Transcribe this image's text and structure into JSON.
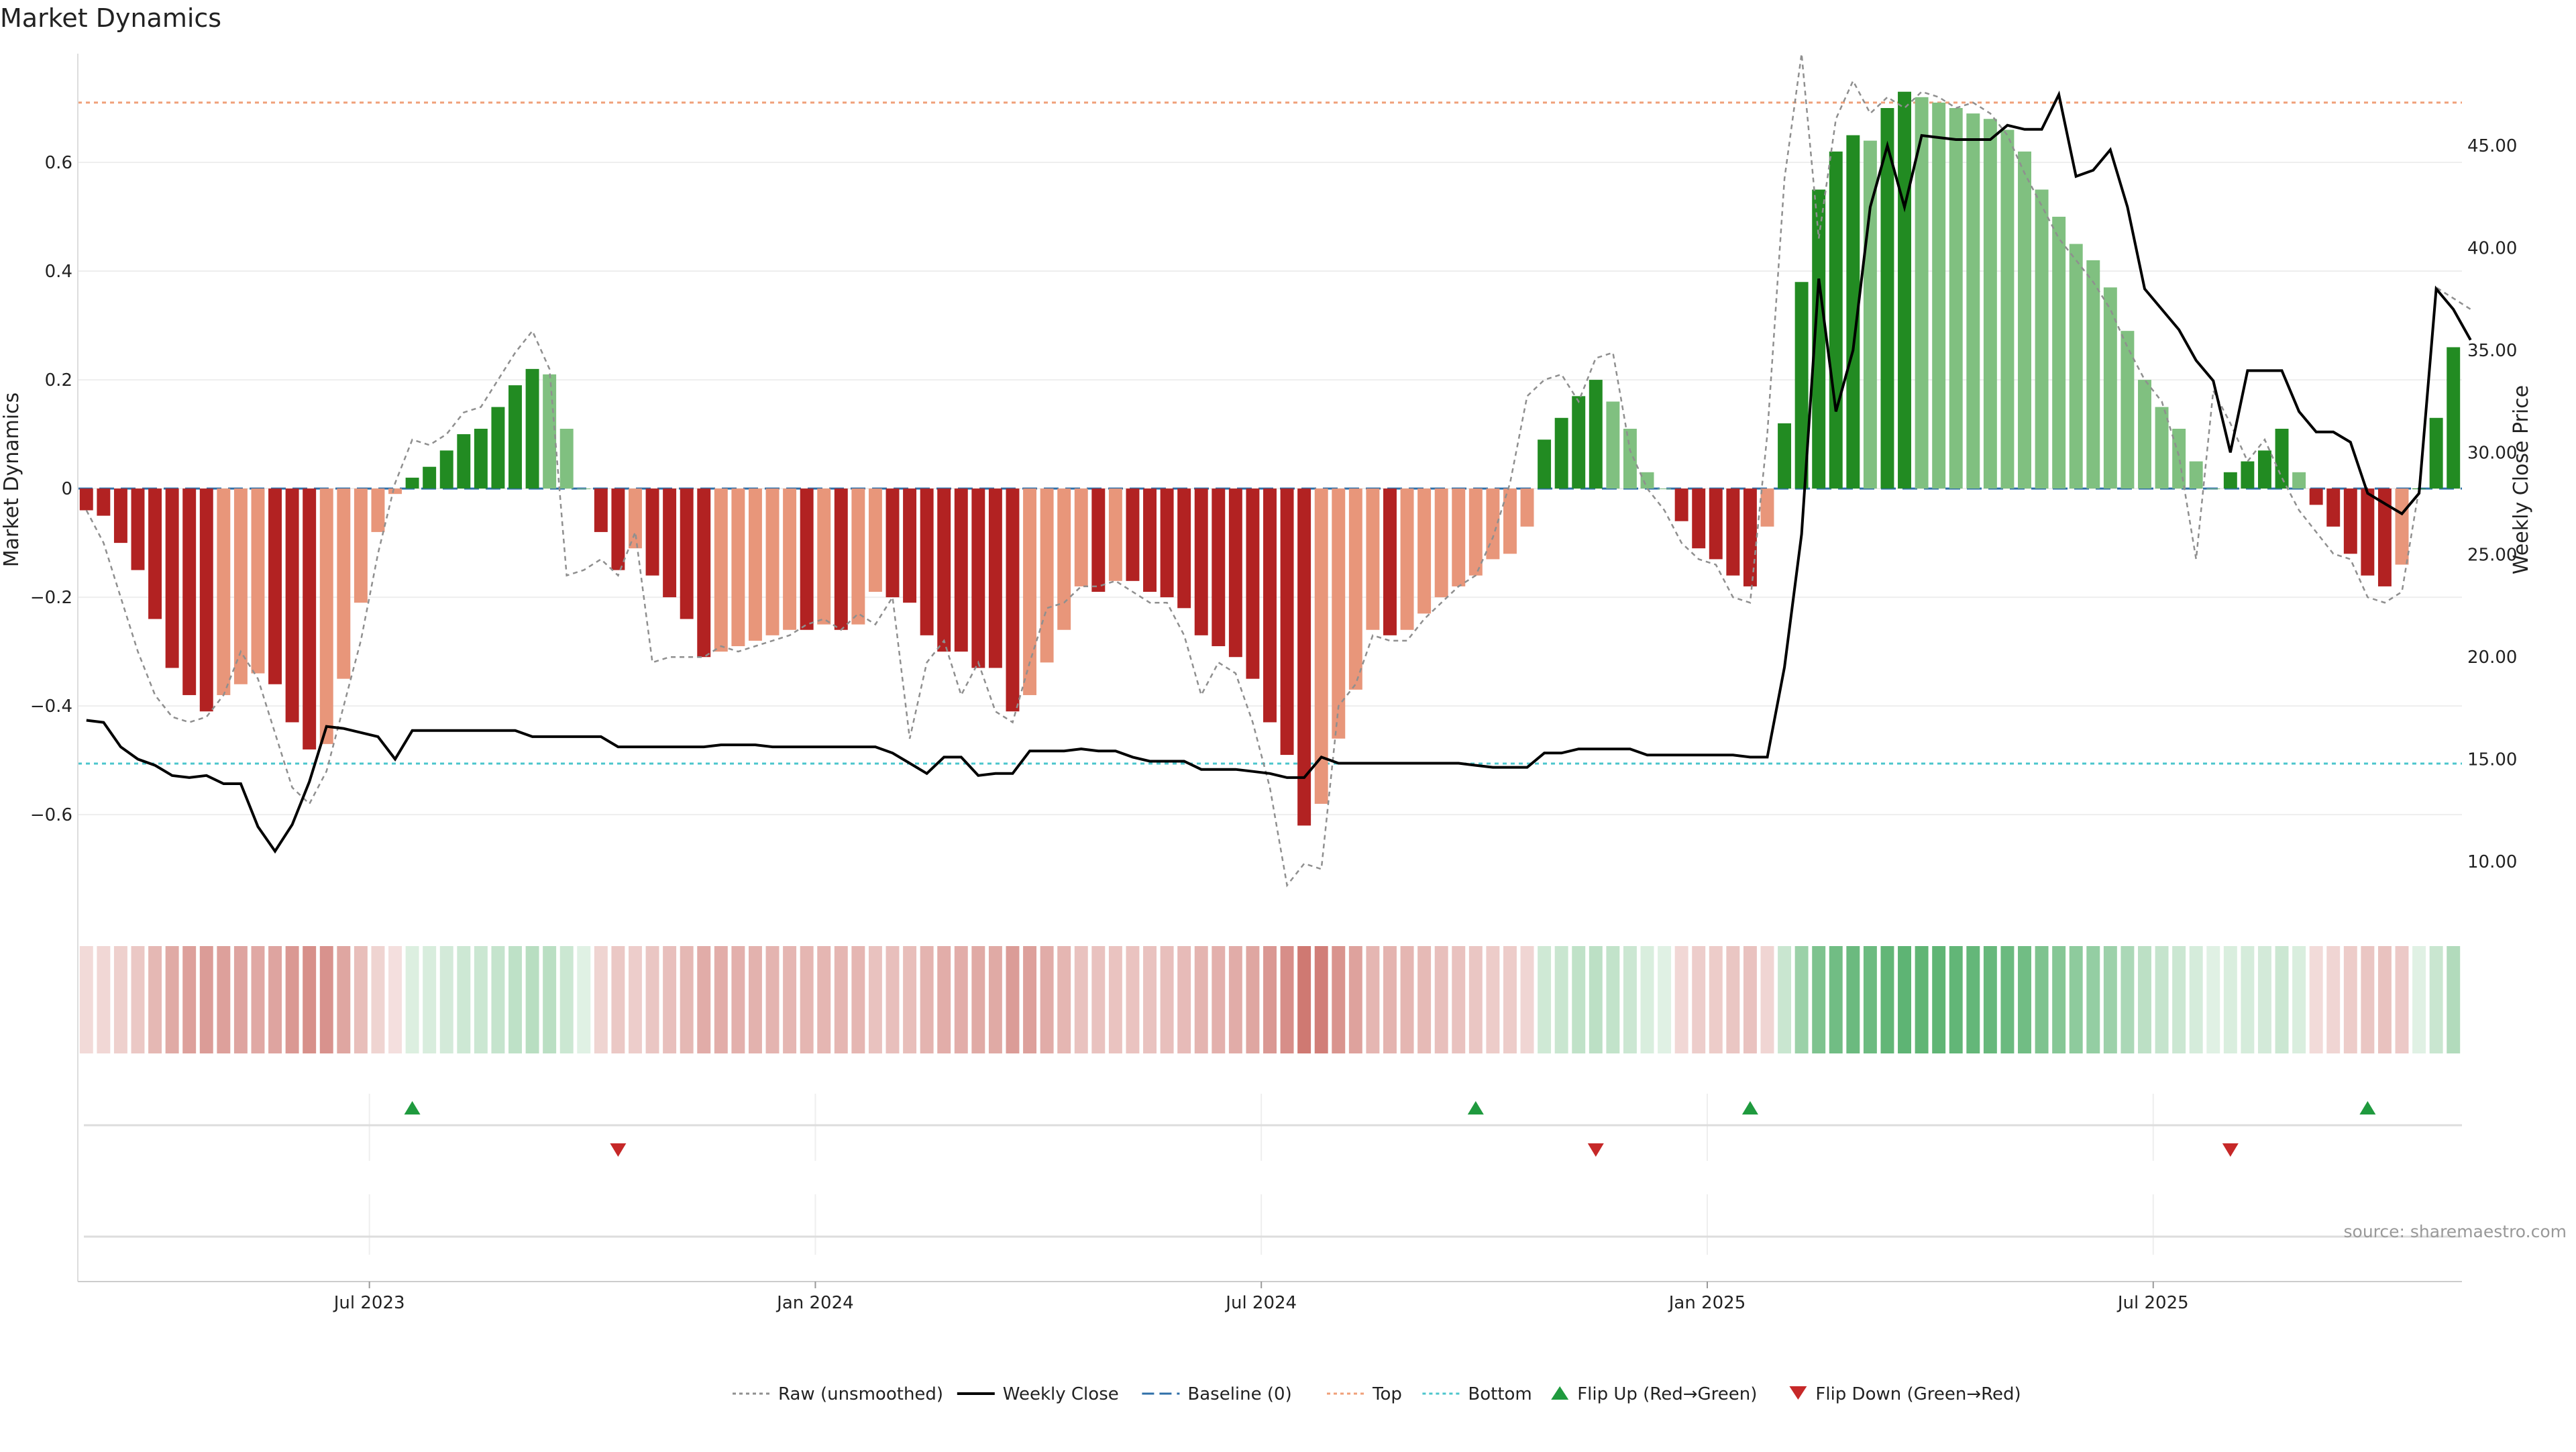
{
  "chart_data": {
    "type": "bar",
    "title": "Market Dynamics",
    "ylabel": "Market Dynamics",
    "ylabel_right": "Weekly Close Price",
    "ylim": [
      -0.78,
      0.8
    ],
    "ylim_right": [
      7.5,
      49.5
    ],
    "y_ticks": [
      {
        "v": 0.6,
        "label": "0.6"
      },
      {
        "v": 0.4,
        "label": "0.4"
      },
      {
        "v": 0.2,
        "label": "0.2"
      },
      {
        "v": 0,
        "label": "0"
      },
      {
        "v": -0.2,
        "label": "−0.2"
      },
      {
        "v": -0.4,
        "label": "−0.4"
      },
      {
        "v": -0.6,
        "label": "−0.6"
      }
    ],
    "y_right_ticks": [
      {
        "v": 45,
        "label": "45.00"
      },
      {
        "v": 40,
        "label": "40.00"
      },
      {
        "v": 35,
        "label": "35.00"
      },
      {
        "v": 30,
        "label": "30.00"
      },
      {
        "v": 25,
        "label": "25.00"
      },
      {
        "v": 20,
        "label": "20.00"
      },
      {
        "v": 15,
        "label": "15.00"
      },
      {
        "v": 10,
        "label": "10.00"
      }
    ],
    "x_ticks": [
      {
        "week": 17,
        "label": "Jul 2023"
      },
      {
        "week": 43,
        "label": "Jan 2024"
      },
      {
        "week": 69,
        "label": "Jul 2024"
      },
      {
        "week": 95,
        "label": "Jan 2025"
      },
      {
        "week": 121,
        "label": "Jul 2025"
      }
    ],
    "first_week": "2023-03-06",
    "smoothed": [
      -0.04,
      -0.05,
      -0.1,
      -0.15,
      -0.24,
      -0.33,
      -0.38,
      -0.41,
      -0.38,
      -0.36,
      -0.34,
      -0.36,
      -0.43,
      -0.48,
      -0.47,
      -0.35,
      -0.21,
      -0.08,
      -0.01,
      0.02,
      0.04,
      0.07,
      0.1,
      0.11,
      0.15,
      0.19,
      0.22,
      0.21,
      0.11,
      0.0,
      -0.08,
      -0.15,
      -0.11,
      -0.16,
      -0.2,
      -0.24,
      -0.31,
      -0.3,
      -0.29,
      -0.28,
      -0.27,
      -0.26,
      -0.26,
      -0.25,
      -0.26,
      -0.25,
      -0.19,
      -0.2,
      -0.21,
      -0.27,
      -0.3,
      -0.3,
      -0.33,
      -0.33,
      -0.41,
      -0.38,
      -0.32,
      -0.26,
      -0.18,
      -0.19,
      -0.17,
      -0.17,
      -0.19,
      -0.2,
      -0.22,
      -0.27,
      -0.29,
      -0.31,
      -0.35,
      -0.43,
      -0.49,
      -0.62,
      -0.58,
      -0.46,
      -0.37,
      -0.26,
      -0.27,
      -0.26,
      -0.23,
      -0.2,
      -0.18,
      -0.16,
      -0.13,
      -0.12,
      -0.07,
      0.09,
      0.13,
      0.17,
      0.2,
      0.16,
      0.11,
      0.03,
      0.0,
      -0.06,
      -0.11,
      -0.13,
      -0.16,
      -0.18,
      -0.07,
      0.12,
      0.38,
      0.55,
      0.62,
      0.65,
      0.64,
      0.7,
      0.73,
      0.72,
      0.71,
      0.7,
      0.69,
      0.68,
      0.66,
      0.62,
      0.55,
      0.5,
      0.45,
      0.42,
      0.37,
      0.29,
      0.2,
      0.15,
      0.11,
      0.05,
      0.0,
      0.03,
      0.05,
      0.07,
      0.11,
      0.03,
      -0.03,
      -0.07,
      -0.12,
      -0.16,
      -0.18,
      -0.14,
      0.0,
      0.13,
      0.26
    ],
    "raw": [
      -0.04,
      -0.1,
      -0.2,
      -0.3,
      -0.38,
      -0.42,
      -0.43,
      -0.42,
      -0.38,
      -0.3,
      -0.35,
      -0.45,
      -0.55,
      -0.58,
      -0.52,
      -0.4,
      -0.28,
      -0.12,
      0.01,
      0.09,
      0.08,
      0.1,
      0.14,
      0.15,
      0.2,
      0.25,
      0.29,
      0.22,
      -0.16,
      -0.15,
      -0.13,
      -0.16,
      -0.08,
      -0.32,
      -0.31,
      -0.31,
      -0.31,
      -0.29,
      -0.3,
      -0.29,
      -0.28,
      -0.27,
      -0.25,
      -0.24,
      -0.26,
      -0.23,
      -0.25,
      -0.2,
      -0.46,
      -0.32,
      -0.28,
      -0.38,
      -0.32,
      -0.41,
      -0.43,
      -0.32,
      -0.22,
      -0.21,
      -0.18,
      -0.18,
      -0.17,
      -0.19,
      -0.21,
      -0.21,
      -0.27,
      -0.38,
      -0.32,
      -0.34,
      -0.43,
      -0.55,
      -0.73,
      -0.69,
      -0.7,
      -0.4,
      -0.36,
      -0.27,
      -0.28,
      -0.28,
      -0.24,
      -0.21,
      -0.18,
      -0.16,
      -0.09,
      0.01,
      0.17,
      0.2,
      0.21,
      0.16,
      0.24,
      0.25,
      0.07,
      0.0,
      -0.04,
      -0.1,
      -0.13,
      -0.14,
      -0.2,
      -0.21,
      0.1,
      0.57,
      0.8,
      0.46,
      0.68,
      0.75,
      0.69,
      0.72,
      0.7,
      0.73,
      0.72,
      0.7,
      0.71,
      0.69,
      0.65,
      0.58,
      0.52,
      0.46,
      0.42,
      0.38,
      0.33,
      0.26,
      0.2,
      0.16,
      0.06,
      -0.13,
      0.18,
      0.12,
      0.05,
      0.09,
      0.02,
      -0.04,
      -0.08,
      -0.12,
      -0.13,
      -0.2,
      -0.21,
      -0.19,
      0.0,
      0.37,
      0.35,
      0.33
    ],
    "weekly_close": [
      16.9,
      16.8,
      15.6,
      15.0,
      14.7,
      14.2,
      14.1,
      14.2,
      13.8,
      13.8,
      11.7,
      10.5,
      11.8,
      13.9,
      16.6,
      16.5,
      16.3,
      16.1,
      15.0,
      16.4,
      16.4,
      16.4,
      16.4,
      16.4,
      16.4,
      16.4,
      16.1,
      16.1,
      16.1,
      16.1,
      16.1,
      15.6,
      15.6,
      15.6,
      15.6,
      15.6,
      15.6,
      15.7,
      15.7,
      15.7,
      15.6,
      15.6,
      15.6,
      15.6,
      15.6,
      15.6,
      15.6,
      15.3,
      14.8,
      14.3,
      15.1,
      15.1,
      14.2,
      14.3,
      14.3,
      15.4,
      15.4,
      15.4,
      15.5,
      15.4,
      15.4,
      15.1,
      14.9,
      14.9,
      14.9,
      14.5,
      14.5,
      14.5,
      14.4,
      14.3,
      14.1,
      14.1,
      15.1,
      14.8,
      14.8,
      14.8,
      14.8,
      14.8,
      14.8,
      14.8,
      14.8,
      14.7,
      14.6,
      14.6,
      14.6,
      15.3,
      15.3,
      15.5,
      15.5,
      15.5,
      15.5,
      15.2,
      15.2,
      15.2,
      15.2,
      15.2,
      15.2,
      15.1,
      15.1,
      19.5,
      26.0,
      38.5,
      32.0,
      35.0,
      42.0,
      45.0,
      42.0,
      45.5,
      45.4,
      45.3,
      45.3,
      45.3,
      46.0,
      45.8,
      45.8,
      47.5,
      43.5,
      43.8,
      44.8,
      42.0,
      38.0,
      37.0,
      36.0,
      34.5,
      33.5,
      30.0,
      34.0,
      34.0,
      34.0,
      32.0,
      31.0,
      31.0,
      30.5,
      28.0,
      27.5,
      27.0,
      28.0,
      38.0,
      37.0,
      35.5
    ],
    "reference_lines": {
      "baseline": 0,
      "top": 0.71,
      "bottom": -0.506
    },
    "flip_up_weeks": [
      19,
      81,
      97,
      133
    ],
    "flip_down_weeks": [
      31,
      88,
      125
    ],
    "legend": {
      "placement": "bottom-center",
      "entries": [
        {
          "label": "Raw (unsmoothed)",
          "style": "dotted-line",
          "color": "#8f8f8f"
        },
        {
          "label": "Weekly Close",
          "style": "line",
          "color": "#000000"
        },
        {
          "label": "Baseline (0)",
          "style": "dashed-line",
          "color": "#2f6fa8"
        },
        {
          "label": "Top",
          "style": "dotted-line",
          "color": "#f0a07a"
        },
        {
          "label": "Bottom",
          "style": "dotted-line",
          "color": "#4cc6cc"
        },
        {
          "label": "Flip Up (Red→Green)",
          "style": "triangle-up",
          "color": "#1f9a3e"
        },
        {
          "label": "Flip Down (Green→Red)",
          "style": "triangle-down",
          "color": "#c62828"
        }
      ]
    },
    "colors": {
      "strong_green": "#228b22",
      "light_green": "#80c080",
      "strong_red": "#b22222",
      "light_red": "#e8967a",
      "baseline": "#2f6fa8",
      "top": "#f0a07a",
      "bottom": "#4cc6cc",
      "flip_up": "#1f9a3e",
      "flip_down": "#c62828"
    },
    "grid": true,
    "source": "source: sharemaestro.com"
  }
}
